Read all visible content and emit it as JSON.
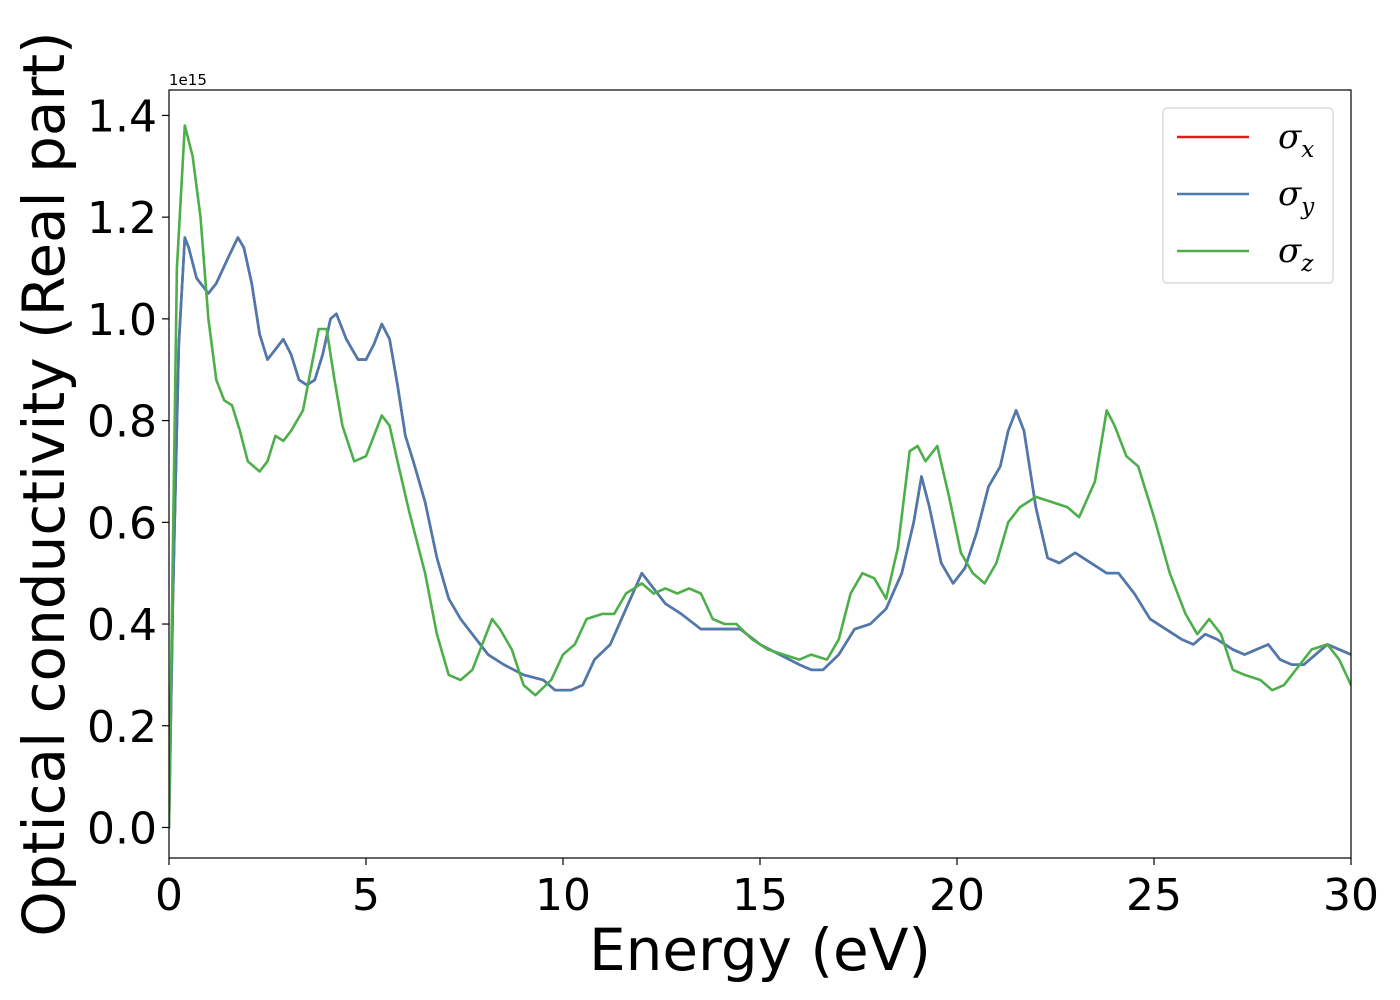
{
  "chart_data": {
    "type": "line",
    "xlabel": "Energy (eV)",
    "ylabel": "Optical conductivity (Real part)",
    "y_offset_text": "1e15",
    "xlim": [
      0,
      30
    ],
    "ylim": [
      -0.06,
      1.45
    ],
    "x_ticks": [
      0,
      5,
      10,
      15,
      20,
      25,
      30
    ],
    "y_ticks": [
      0.0,
      0.2,
      0.4,
      0.6,
      0.8,
      1.0,
      1.2,
      1.4
    ],
    "x_tick_labels": [
      "0",
      "5",
      "10",
      "15",
      "20",
      "25",
      "30"
    ],
    "y_tick_labels": [
      "0.0",
      "0.2",
      "0.4",
      "0.6",
      "0.8",
      "1.0",
      "1.2",
      "1.4"
    ],
    "legend_position": "top-right",
    "grid": false,
    "series": [
      {
        "name": "σx",
        "color": "#e41a1c",
        "points": [
          [
            0,
            0
          ],
          [
            0.1,
            0.45
          ],
          [
            0.25,
            0.95
          ],
          [
            0.4,
            1.16
          ],
          [
            0.5,
            1.14
          ],
          [
            0.7,
            1.08
          ],
          [
            1.0,
            1.05
          ],
          [
            1.2,
            1.07
          ],
          [
            1.5,
            1.12
          ],
          [
            1.75,
            1.16
          ],
          [
            1.9,
            1.14
          ],
          [
            2.1,
            1.07
          ],
          [
            2.3,
            0.97
          ],
          [
            2.5,
            0.92
          ],
          [
            2.7,
            0.94
          ],
          [
            2.9,
            0.96
          ],
          [
            3.1,
            0.93
          ],
          [
            3.3,
            0.88
          ],
          [
            3.5,
            0.87
          ],
          [
            3.7,
            0.88
          ],
          [
            3.9,
            0.93
          ],
          [
            4.1,
            1.0
          ],
          [
            4.25,
            1.01
          ],
          [
            4.5,
            0.96
          ],
          [
            4.8,
            0.92
          ],
          [
            5.0,
            0.92
          ],
          [
            5.2,
            0.95
          ],
          [
            5.4,
            0.99
          ],
          [
            5.6,
            0.96
          ],
          [
            5.8,
            0.87
          ],
          [
            6.0,
            0.77
          ],
          [
            6.2,
            0.72
          ],
          [
            6.5,
            0.64
          ],
          [
            6.8,
            0.53
          ],
          [
            7.1,
            0.45
          ],
          [
            7.4,
            0.41
          ],
          [
            7.8,
            0.37
          ],
          [
            8.1,
            0.34
          ],
          [
            8.5,
            0.32
          ],
          [
            9.0,
            0.3
          ],
          [
            9.5,
            0.29
          ],
          [
            9.8,
            0.27
          ],
          [
            10.2,
            0.27
          ],
          [
            10.5,
            0.28
          ],
          [
            10.8,
            0.33
          ],
          [
            11.2,
            0.36
          ],
          [
            11.6,
            0.43
          ],
          [
            12.0,
            0.5
          ],
          [
            12.3,
            0.47
          ],
          [
            12.6,
            0.44
          ],
          [
            13.0,
            0.42
          ],
          [
            13.5,
            0.39
          ],
          [
            14.0,
            0.39
          ],
          [
            14.5,
            0.39
          ],
          [
            15.0,
            0.36
          ],
          [
            15.5,
            0.34
          ],
          [
            16.0,
            0.32
          ],
          [
            16.3,
            0.31
          ],
          [
            16.6,
            0.31
          ],
          [
            17.0,
            0.34
          ],
          [
            17.4,
            0.39
          ],
          [
            17.8,
            0.4
          ],
          [
            18.2,
            0.43
          ],
          [
            18.6,
            0.5
          ],
          [
            18.9,
            0.6
          ],
          [
            19.1,
            0.69
          ],
          [
            19.3,
            0.63
          ],
          [
            19.6,
            0.52
          ],
          [
            19.9,
            0.48
          ],
          [
            20.2,
            0.51
          ],
          [
            20.5,
            0.58
          ],
          [
            20.8,
            0.67
          ],
          [
            21.1,
            0.71
          ],
          [
            21.3,
            0.78
          ],
          [
            21.5,
            0.82
          ],
          [
            21.7,
            0.78
          ],
          [
            22.0,
            0.63
          ],
          [
            22.3,
            0.53
          ],
          [
            22.6,
            0.52
          ],
          [
            23.0,
            0.54
          ],
          [
            23.4,
            0.52
          ],
          [
            23.8,
            0.5
          ],
          [
            24.1,
            0.5
          ],
          [
            24.5,
            0.46
          ],
          [
            24.9,
            0.41
          ],
          [
            25.3,
            0.39
          ],
          [
            25.7,
            0.37
          ],
          [
            26.0,
            0.36
          ],
          [
            26.3,
            0.38
          ],
          [
            26.6,
            0.37
          ],
          [
            27.0,
            0.35
          ],
          [
            27.3,
            0.34
          ],
          [
            27.6,
            0.35
          ],
          [
            27.9,
            0.36
          ],
          [
            28.2,
            0.33
          ],
          [
            28.5,
            0.32
          ],
          [
            28.8,
            0.32
          ],
          [
            29.1,
            0.34
          ],
          [
            29.4,
            0.36
          ],
          [
            29.7,
            0.35
          ],
          [
            30.0,
            0.34
          ]
        ]
      },
      {
        "name": "σy",
        "color": "#4a7bb0",
        "points": [
          [
            0,
            0
          ],
          [
            0.1,
            0.45
          ],
          [
            0.25,
            0.95
          ],
          [
            0.4,
            1.16
          ],
          [
            0.5,
            1.14
          ],
          [
            0.7,
            1.08
          ],
          [
            1.0,
            1.05
          ],
          [
            1.2,
            1.07
          ],
          [
            1.5,
            1.12
          ],
          [
            1.75,
            1.16
          ],
          [
            1.9,
            1.14
          ],
          [
            2.1,
            1.07
          ],
          [
            2.3,
            0.97
          ],
          [
            2.5,
            0.92
          ],
          [
            2.7,
            0.94
          ],
          [
            2.9,
            0.96
          ],
          [
            3.1,
            0.93
          ],
          [
            3.3,
            0.88
          ],
          [
            3.5,
            0.87
          ],
          [
            3.7,
            0.88
          ],
          [
            3.9,
            0.93
          ],
          [
            4.1,
            1.0
          ],
          [
            4.25,
            1.01
          ],
          [
            4.5,
            0.96
          ],
          [
            4.8,
            0.92
          ],
          [
            5.0,
            0.92
          ],
          [
            5.2,
            0.95
          ],
          [
            5.4,
            0.99
          ],
          [
            5.6,
            0.96
          ],
          [
            5.8,
            0.87
          ],
          [
            6.0,
            0.77
          ],
          [
            6.2,
            0.72
          ],
          [
            6.5,
            0.64
          ],
          [
            6.8,
            0.53
          ],
          [
            7.1,
            0.45
          ],
          [
            7.4,
            0.41
          ],
          [
            7.8,
            0.37
          ],
          [
            8.1,
            0.34
          ],
          [
            8.5,
            0.32
          ],
          [
            9.0,
            0.3
          ],
          [
            9.5,
            0.29
          ],
          [
            9.8,
            0.27
          ],
          [
            10.2,
            0.27
          ],
          [
            10.5,
            0.28
          ],
          [
            10.8,
            0.33
          ],
          [
            11.2,
            0.36
          ],
          [
            11.6,
            0.43
          ],
          [
            12.0,
            0.5
          ],
          [
            12.3,
            0.47
          ],
          [
            12.6,
            0.44
          ],
          [
            13.0,
            0.42
          ],
          [
            13.5,
            0.39
          ],
          [
            14.0,
            0.39
          ],
          [
            14.5,
            0.39
          ],
          [
            15.0,
            0.36
          ],
          [
            15.5,
            0.34
          ],
          [
            16.0,
            0.32
          ],
          [
            16.3,
            0.31
          ],
          [
            16.6,
            0.31
          ],
          [
            17.0,
            0.34
          ],
          [
            17.4,
            0.39
          ],
          [
            17.8,
            0.4
          ],
          [
            18.2,
            0.43
          ],
          [
            18.6,
            0.5
          ],
          [
            18.9,
            0.6
          ],
          [
            19.1,
            0.69
          ],
          [
            19.3,
            0.63
          ],
          [
            19.6,
            0.52
          ],
          [
            19.9,
            0.48
          ],
          [
            20.2,
            0.51
          ],
          [
            20.5,
            0.58
          ],
          [
            20.8,
            0.67
          ],
          [
            21.1,
            0.71
          ],
          [
            21.3,
            0.78
          ],
          [
            21.5,
            0.82
          ],
          [
            21.7,
            0.78
          ],
          [
            22.0,
            0.63
          ],
          [
            22.3,
            0.53
          ],
          [
            22.6,
            0.52
          ],
          [
            23.0,
            0.54
          ],
          [
            23.4,
            0.52
          ],
          [
            23.8,
            0.5
          ],
          [
            24.1,
            0.5
          ],
          [
            24.5,
            0.46
          ],
          [
            24.9,
            0.41
          ],
          [
            25.3,
            0.39
          ],
          [
            25.7,
            0.37
          ],
          [
            26.0,
            0.36
          ],
          [
            26.3,
            0.38
          ],
          [
            26.6,
            0.37
          ],
          [
            27.0,
            0.35
          ],
          [
            27.3,
            0.34
          ],
          [
            27.6,
            0.35
          ],
          [
            27.9,
            0.36
          ],
          [
            28.2,
            0.33
          ],
          [
            28.5,
            0.32
          ],
          [
            28.8,
            0.32
          ],
          [
            29.1,
            0.34
          ],
          [
            29.4,
            0.36
          ],
          [
            29.7,
            0.35
          ],
          [
            30.0,
            0.34
          ]
        ]
      },
      {
        "name": "σz",
        "color": "#4daf4a",
        "points": [
          [
            0,
            0
          ],
          [
            0.1,
            0.55
          ],
          [
            0.2,
            1.1
          ],
          [
            0.4,
            1.38
          ],
          [
            0.6,
            1.32
          ],
          [
            0.8,
            1.2
          ],
          [
            1.0,
            1.0
          ],
          [
            1.2,
            0.88
          ],
          [
            1.4,
            0.84
          ],
          [
            1.6,
            0.83
          ],
          [
            1.8,
            0.78
          ],
          [
            2.0,
            0.72
          ],
          [
            2.3,
            0.7
          ],
          [
            2.5,
            0.72
          ],
          [
            2.7,
            0.77
          ],
          [
            2.9,
            0.76
          ],
          [
            3.1,
            0.78
          ],
          [
            3.4,
            0.82
          ],
          [
            3.6,
            0.9
          ],
          [
            3.8,
            0.98
          ],
          [
            4.0,
            0.98
          ],
          [
            4.2,
            0.88
          ],
          [
            4.4,
            0.79
          ],
          [
            4.7,
            0.72
          ],
          [
            5.0,
            0.73
          ],
          [
            5.2,
            0.77
          ],
          [
            5.4,
            0.81
          ],
          [
            5.6,
            0.79
          ],
          [
            5.8,
            0.72
          ],
          [
            6.1,
            0.62
          ],
          [
            6.5,
            0.5
          ],
          [
            6.8,
            0.38
          ],
          [
            7.1,
            0.3
          ],
          [
            7.4,
            0.29
          ],
          [
            7.7,
            0.31
          ],
          [
            8.0,
            0.37
          ],
          [
            8.2,
            0.41
          ],
          [
            8.4,
            0.39
          ],
          [
            8.7,
            0.35
          ],
          [
            9.0,
            0.28
          ],
          [
            9.3,
            0.26
          ],
          [
            9.7,
            0.29
          ],
          [
            10.0,
            0.34
          ],
          [
            10.3,
            0.36
          ],
          [
            10.6,
            0.41
          ],
          [
            11.0,
            0.42
          ],
          [
            11.3,
            0.42
          ],
          [
            11.6,
            0.46
          ],
          [
            12.0,
            0.48
          ],
          [
            12.3,
            0.46
          ],
          [
            12.6,
            0.47
          ],
          [
            12.9,
            0.46
          ],
          [
            13.2,
            0.47
          ],
          [
            13.5,
            0.46
          ],
          [
            13.8,
            0.41
          ],
          [
            14.1,
            0.4
          ],
          [
            14.4,
            0.4
          ],
          [
            14.8,
            0.37
          ],
          [
            15.2,
            0.35
          ],
          [
            15.6,
            0.34
          ],
          [
            16.0,
            0.33
          ],
          [
            16.3,
            0.34
          ],
          [
            16.7,
            0.33
          ],
          [
            17.0,
            0.37
          ],
          [
            17.3,
            0.46
          ],
          [
            17.6,
            0.5
          ],
          [
            17.9,
            0.49
          ],
          [
            18.2,
            0.45
          ],
          [
            18.5,
            0.55
          ],
          [
            18.8,
            0.74
          ],
          [
            19.0,
            0.75
          ],
          [
            19.2,
            0.72
          ],
          [
            19.5,
            0.75
          ],
          [
            19.8,
            0.65
          ],
          [
            20.1,
            0.54
          ],
          [
            20.4,
            0.5
          ],
          [
            20.7,
            0.48
          ],
          [
            21.0,
            0.52
          ],
          [
            21.3,
            0.6
          ],
          [
            21.6,
            0.63
          ],
          [
            22.0,
            0.65
          ],
          [
            22.4,
            0.64
          ],
          [
            22.8,
            0.63
          ],
          [
            23.1,
            0.61
          ],
          [
            23.5,
            0.68
          ],
          [
            23.8,
            0.82
          ],
          [
            24.0,
            0.79
          ],
          [
            24.3,
            0.73
          ],
          [
            24.6,
            0.71
          ],
          [
            25.0,
            0.61
          ],
          [
            25.4,
            0.5
          ],
          [
            25.8,
            0.42
          ],
          [
            26.1,
            0.38
          ],
          [
            26.4,
            0.41
          ],
          [
            26.7,
            0.38
          ],
          [
            27.0,
            0.31
          ],
          [
            27.3,
            0.3
          ],
          [
            27.7,
            0.29
          ],
          [
            28.0,
            0.27
          ],
          [
            28.3,
            0.28
          ],
          [
            28.7,
            0.32
          ],
          [
            29.0,
            0.35
          ],
          [
            29.4,
            0.36
          ],
          [
            29.7,
            0.33
          ],
          [
            30.0,
            0.28
          ]
        ]
      }
    ]
  }
}
